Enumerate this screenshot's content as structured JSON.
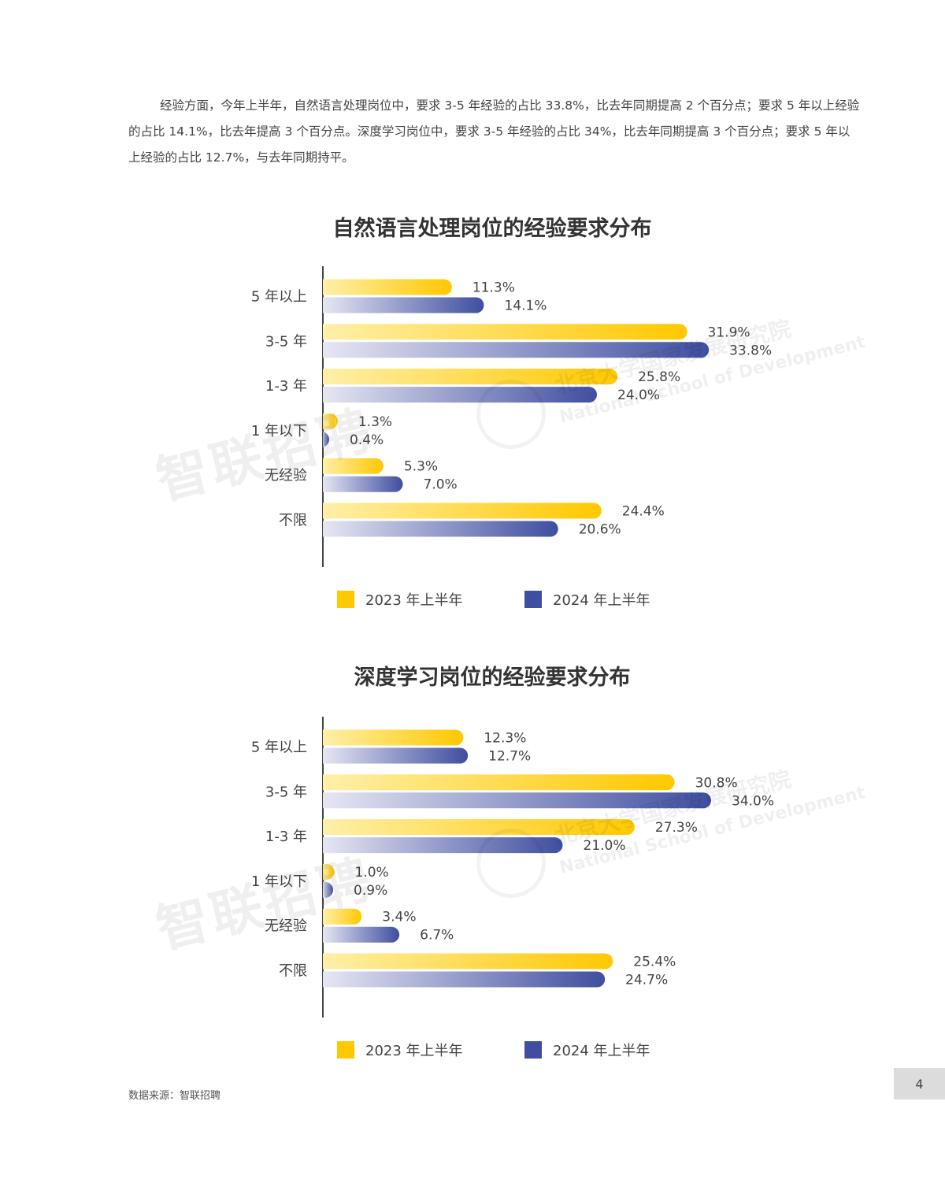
{
  "intro_text": "经验方面，今年上半年，自然语言处理岗位中，要求 3-5 年经验的占比 33.8%，比去年同期提高 2 个百分点；要求 5 年以上经验的占比 14.1%，比去年提高 3 个百分点。深度学习岗位中，要求 3-5 年经验的占比 34%，比去年同期提高 3 个百分点；要求 5 年以上经验的占比 12.7%，与去年同期持平。",
  "colors": {
    "series_2023": "#FFC800",
    "series_2024": "#3F4EA0"
  },
  "chart_data": [
    {
      "type": "bar",
      "orientation": "horizontal",
      "title": "自然语言处理岗位的经验要求分布",
      "categories": [
        "5 年以上",
        "3-5 年",
        "1-3 年",
        "1 年以下",
        "无经验",
        "不限"
      ],
      "series": [
        {
          "name": "2023 年上半年",
          "values": [
            11.3,
            31.9,
            25.8,
            1.3,
            5.3,
            24.4
          ]
        },
        {
          "name": "2024 年上半年",
          "values": [
            14.1,
            33.8,
            24.0,
            0.4,
            7.0,
            20.6
          ]
        }
      ],
      "value_suffix": "%",
      "xlim": [
        0,
        40
      ],
      "legend": "bottom"
    },
    {
      "type": "bar",
      "orientation": "horizontal",
      "title": "深度学习岗位的经验要求分布",
      "categories": [
        "5 年以上",
        "3-5 年",
        "1-3 年",
        "1 年以下",
        "无经验",
        "不限"
      ],
      "series": [
        {
          "name": "2023 年上半年",
          "values": [
            12.3,
            30.8,
            27.3,
            1.0,
            3.4,
            25.4
          ]
        },
        {
          "name": "2024 年上半年",
          "values": [
            12.7,
            34.0,
            21.0,
            0.9,
            6.7,
            24.7
          ]
        }
      ],
      "value_suffix": "%",
      "xlim": [
        0,
        40
      ],
      "legend": "bottom"
    }
  ],
  "watermark": {
    "brand": "智联招聘",
    "institute": "北京大学国家发展研究院",
    "institute_en": "National School of Development"
  },
  "source_text": "数据来源：智联招聘",
  "page_number": "4"
}
